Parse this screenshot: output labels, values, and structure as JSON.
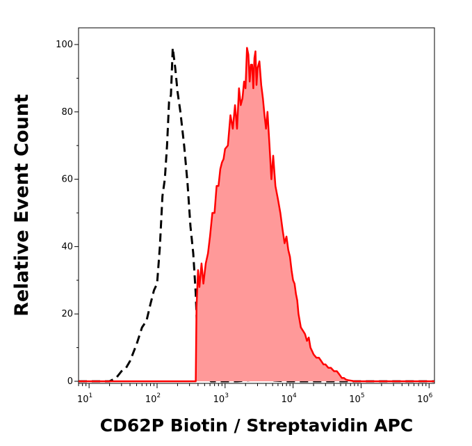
{
  "chart_data": {
    "type": "area",
    "xlabel": "CD62P Biotin / Streptavidin APC",
    "ylabel": "Relative Event Count",
    "xscale": "log",
    "xlim": [
      7,
      1200000
    ],
    "ylim": [
      0,
      100
    ],
    "grid": false,
    "legend": "none",
    "y_ticks": [
      0,
      20,
      40,
      60,
      80,
      100
    ],
    "x_ticks": [
      {
        "value": 10,
        "base": "10",
        "exp": "1"
      },
      {
        "value": 100,
        "base": "10",
        "exp": "2"
      },
      {
        "value": 1000,
        "base": "10",
        "exp": "3"
      },
      {
        "value": 10000,
        "base": "10",
        "exp": "4"
      },
      {
        "value": 100000,
        "base": "10",
        "exp": "5"
      },
      {
        "value": 1000000,
        "base": "10",
        "exp": "6"
      }
    ],
    "series": [
      {
        "style": "dashed",
        "color": "#000000",
        "x": [
          7,
          20,
          25,
          30,
          35,
          40,
          50,
          60,
          70,
          80,
          90,
          100,
          110,
          120,
          130,
          140,
          150,
          160,
          170,
          185,
          200,
          220,
          250,
          280,
          310,
          340,
          370,
          400,
          450,
          500,
          560,
          620,
          700,
          900,
          1500,
          3000,
          8000,
          20000,
          1200000
        ],
        "y": [
          0,
          0,
          1,
          3,
          4,
          6,
          11,
          16,
          18,
          23,
          27,
          29,
          40,
          55,
          60,
          70,
          83,
          85,
          99,
          93,
          86,
          80,
          70,
          59,
          46,
          38,
          26,
          8,
          5,
          3,
          1,
          0,
          0,
          0,
          0,
          0.5,
          0,
          0,
          0
        ]
      },
      {
        "style": "filled",
        "color": "#ff0000",
        "fill": "#ff9999",
        "x": [
          7,
          370,
          380,
          400,
          420,
          450,
          480,
          520,
          560,
          600,
          650,
          700,
          750,
          800,
          850,
          900,
          950,
          1000,
          1100,
          1200,
          1300,
          1400,
          1500,
          1600,
          1700,
          1800,
          1900,
          2000,
          2100,
          2200,
          2300,
          2400,
          2500,
          2600,
          2700,
          2800,
          2900,
          3000,
          3200,
          3400,
          3600,
          3800,
          4000,
          4200,
          4500,
          4800,
          5100,
          5500,
          6000,
          6500,
          7000,
          7500,
          8000,
          8500,
          9000,
          9500,
          10000,
          10500,
          11000,
          11500,
          12000,
          13000,
          14000,
          15000,
          16000,
          17000,
          18000,
          19000,
          20000,
          22000,
          24000,
          26000,
          28000,
          30000,
          33000,
          36000,
          40000,
          44000,
          48000,
          52000,
          56000,
          60000,
          65000,
          70000,
          80000,
          1200000
        ],
        "y": [
          0,
          0,
          22,
          33,
          28,
          35,
          29,
          35,
          38,
          43,
          50,
          50,
          58,
          58,
          63,
          65,
          66,
          69,
          70,
          79,
          75,
          82,
          75,
          87,
          82,
          84,
          89,
          87,
          99,
          97,
          89,
          94,
          94,
          87,
          96,
          98,
          88,
          93,
          95,
          88,
          84,
          79,
          75,
          80,
          70,
          60,
          67,
          58,
          54,
          50,
          45,
          41,
          43,
          39,
          37,
          33,
          30,
          29,
          26,
          24,
          20,
          16,
          15,
          14,
          12,
          13,
          10,
          9,
          8,
          7,
          7,
          6,
          5,
          5,
          4,
          4,
          3,
          3,
          2,
          1,
          1,
          0.5,
          0.3,
          0.2,
          0,
          0
        ]
      }
    ]
  }
}
